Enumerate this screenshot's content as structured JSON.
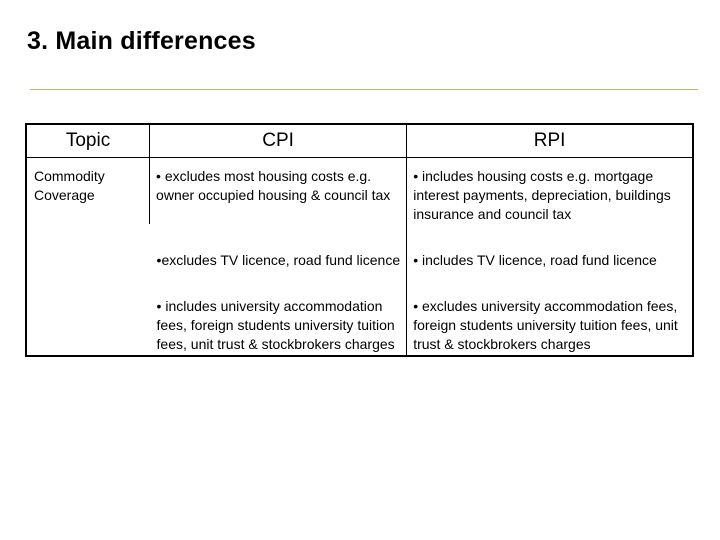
{
  "title": "3. Main differences",
  "table": {
    "headers": {
      "topic": "Topic",
      "cpi": "CPI",
      "rpi": "RPI"
    },
    "topic_label": "Commodity Coverage",
    "rows": [
      {
        "cpi": "• excludes most housing costs e.g. owner occupied housing & council tax",
        "rpi": "• includes housing costs e.g. mortgage interest payments, depreciation, buildings insurance and council tax"
      },
      {
        "cpi": "•excludes TV licence, road fund licence",
        "rpi": "• includes TV licence, road fund licence"
      },
      {
        "cpi": "• includes university accommodation fees, foreign students university tuition fees, unit trust & stockbrokers charges",
        "rpi": "• excludes university accommodation fees, foreign students university tuition fees, unit trust & stockbrokers charges"
      }
    ]
  }
}
